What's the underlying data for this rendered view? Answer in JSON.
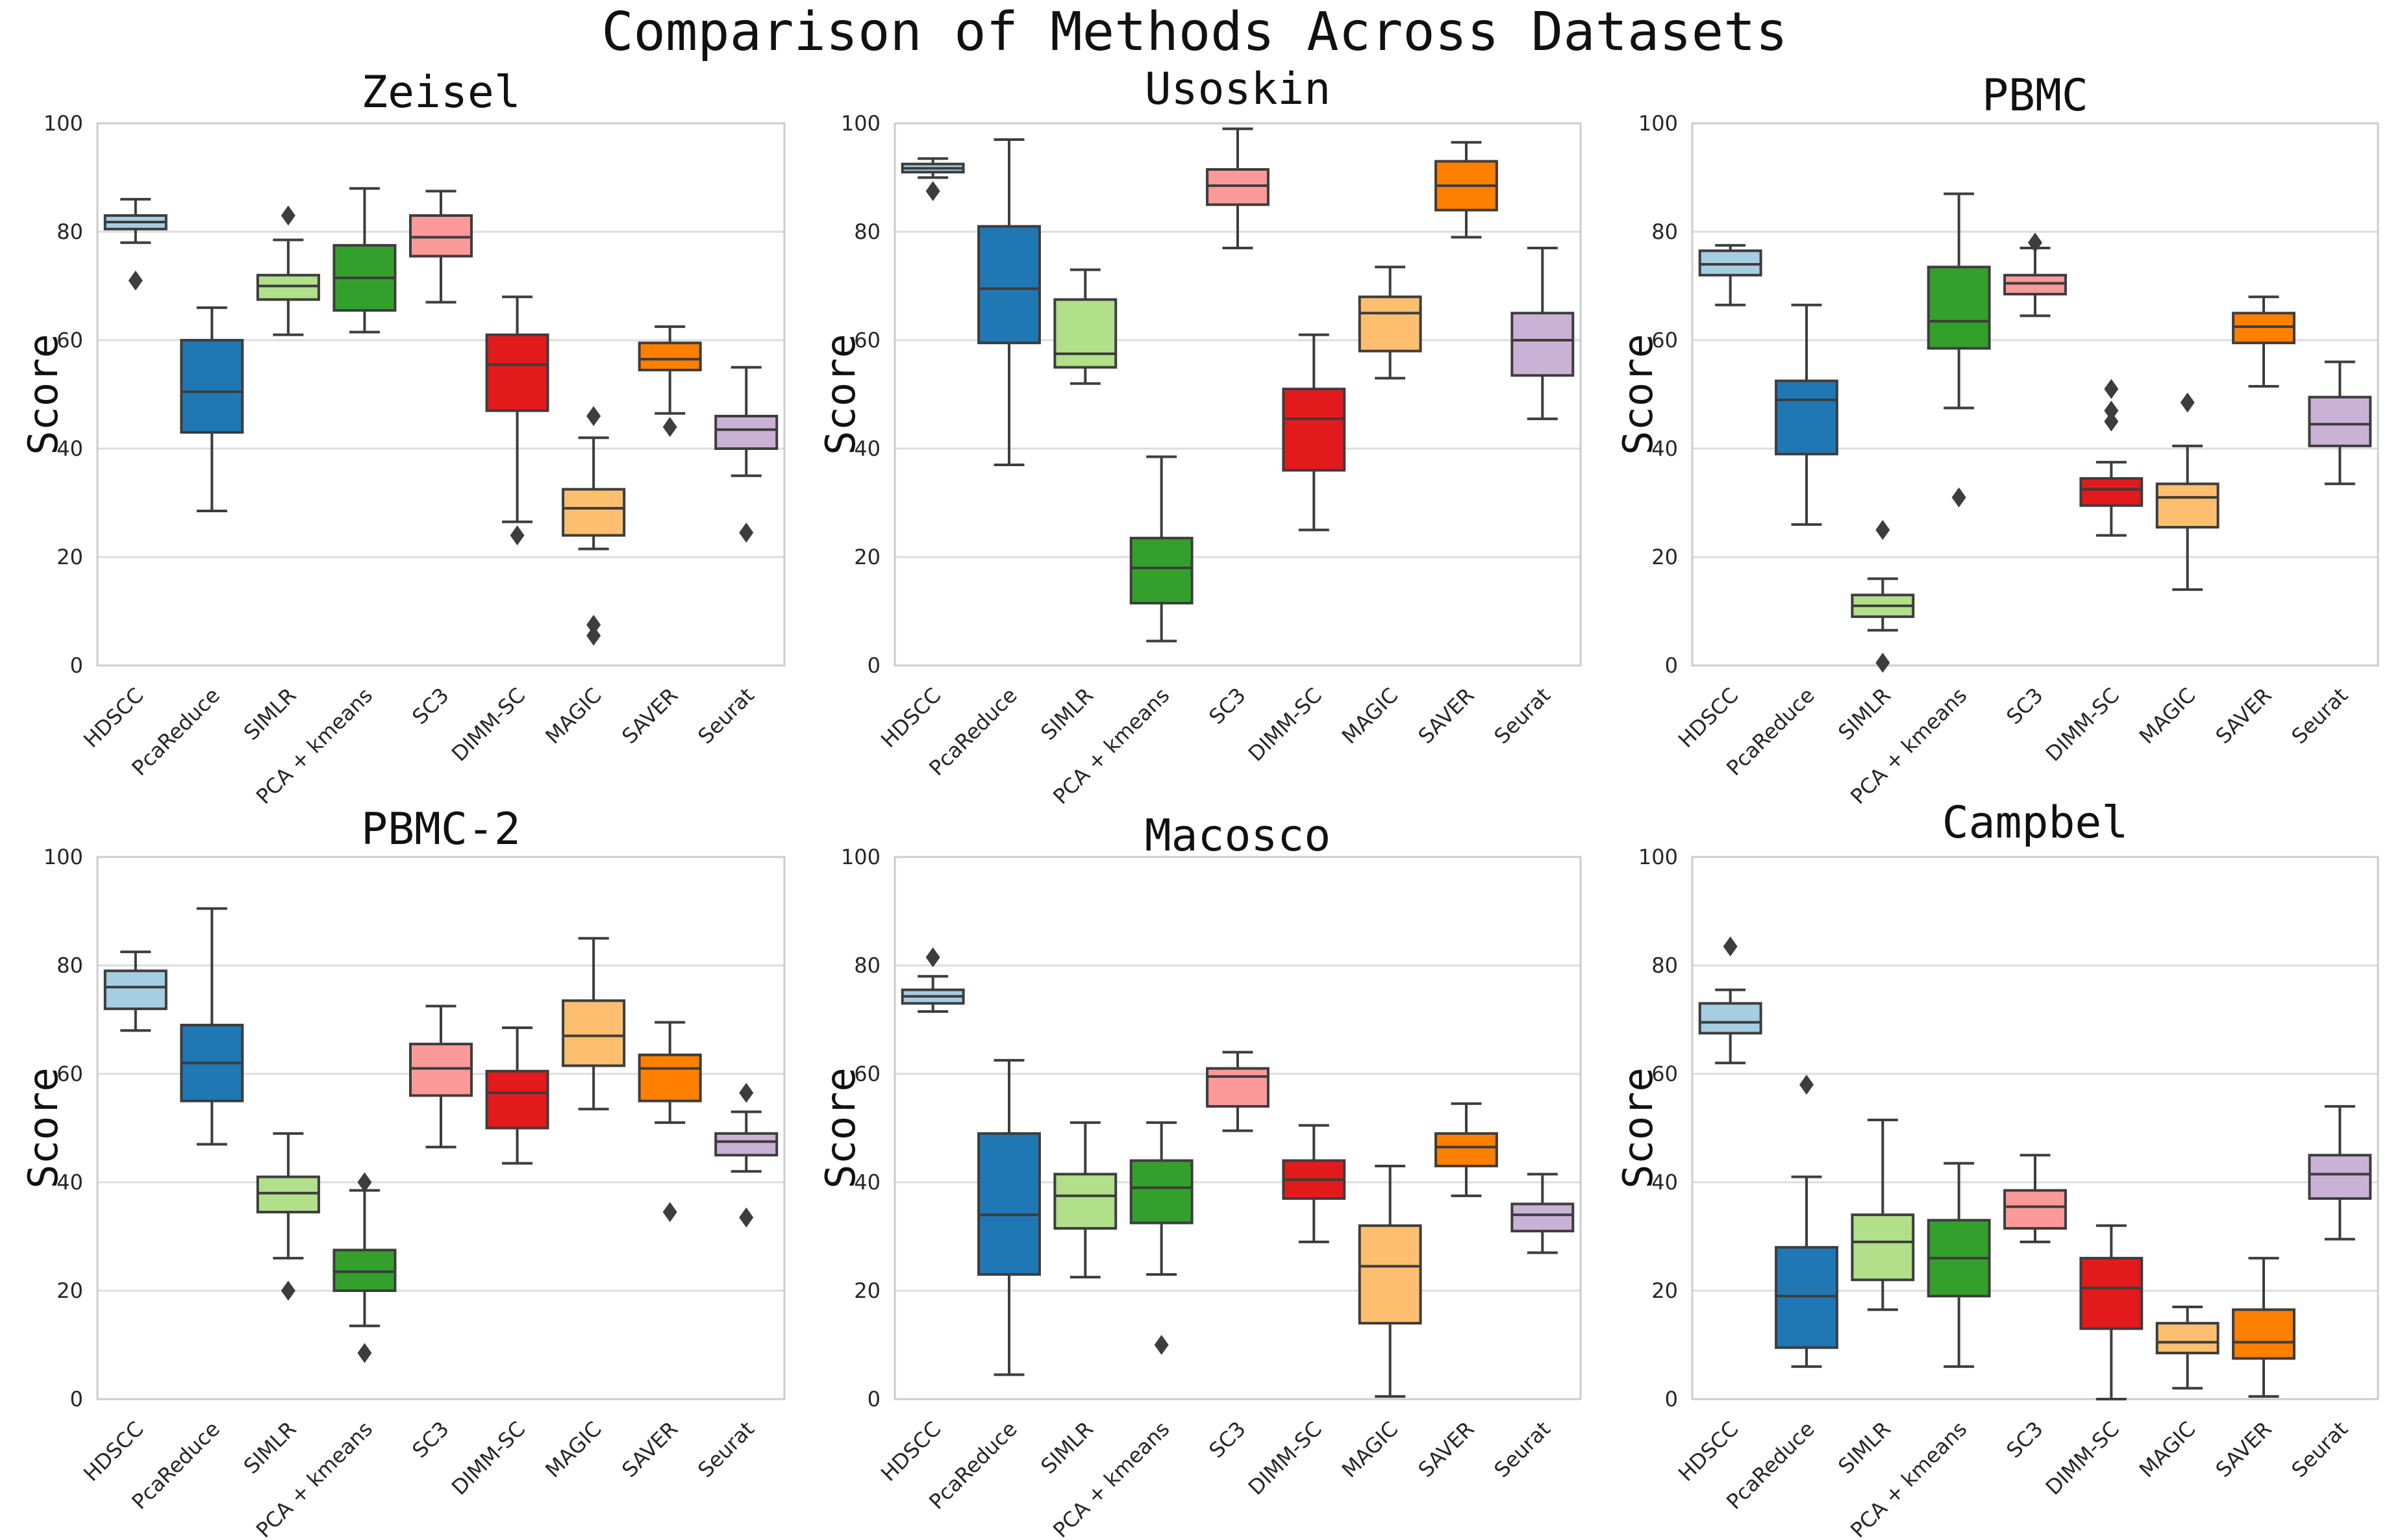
{
  "figure_title": "Comparison of Methods Across Datasets",
  "colors": {
    "HDSCC": "#a6cee3",
    "PcaReduce": "#1f78b4",
    "SIMLR": "#b2df8a",
    "PCA + kmeans": "#33a02c",
    "SC3": "#fb9a99",
    "DIMM-SC": "#e31a1c",
    "MAGIC": "#fdbf6f",
    "SAVER": "#ff7f00",
    "Seurat": "#cab2d6"
  },
  "chart_data": [
    {
      "type": "box",
      "title": "Zeisel",
      "ylabel": "Score",
      "ylim": [
        0,
        100
      ],
      "yticks": [
        "0",
        "20",
        "40",
        "60",
        "80",
        "100"
      ],
      "categories": [
        "HDSCC",
        "PcaReduce",
        "SIMLR",
        "PCA + kmeans",
        "SC3",
        "DIMM-SC",
        "MAGIC",
        "SAVER",
        "Seurat"
      ],
      "boxes": [
        {
          "whislo": 78,
          "q1": 80.5,
          "med": 81.8,
          "q3": 83,
          "whishi": 86,
          "fliers": [
            71
          ]
        },
        {
          "whislo": 28.5,
          "q1": 43,
          "med": 50.5,
          "q3": 60,
          "whishi": 66,
          "fliers": []
        },
        {
          "whislo": 61,
          "q1": 67.5,
          "med": 70,
          "q3": 72,
          "whishi": 78.5,
          "fliers": [
            83
          ]
        },
        {
          "whislo": 61.5,
          "q1": 65.5,
          "med": 71.5,
          "q3": 77.5,
          "whishi": 88,
          "fliers": []
        },
        {
          "whislo": 67,
          "q1": 75.5,
          "med": 79,
          "q3": 83,
          "whishi": 87.5,
          "fliers": []
        },
        {
          "whislo": 26.5,
          "q1": 47,
          "med": 55.5,
          "q3": 61,
          "whishi": 68,
          "fliers": [
            24
          ]
        },
        {
          "whislo": 21.5,
          "q1": 24,
          "med": 29,
          "q3": 32.5,
          "whishi": 42,
          "fliers": [
            46,
            7.5,
            5.5
          ]
        },
        {
          "whislo": 46.5,
          "q1": 54.5,
          "med": 56.5,
          "q3": 59.5,
          "whishi": 62.5,
          "fliers": [
            44
          ]
        },
        {
          "whislo": 35,
          "q1": 40,
          "med": 43.5,
          "q3": 46,
          "whishi": 55,
          "fliers": [
            24.5
          ]
        }
      ]
    },
    {
      "type": "box",
      "title": "Usoskin",
      "ylabel": "Score",
      "ylim": [
        0,
        100
      ],
      "yticks": [
        "0",
        "20",
        "40",
        "60",
        "80",
        "100"
      ],
      "categories": [
        "HDSCC",
        "PcaReduce",
        "SIMLR",
        "PCA + kmeans",
        "SC3",
        "DIMM-SC",
        "MAGIC",
        "SAVER",
        "Seurat"
      ],
      "boxes": [
        {
          "whislo": 90,
          "q1": 91,
          "med": 91.7,
          "q3": 92.5,
          "whishi": 93.5,
          "fliers": [
            87.5
          ]
        },
        {
          "whislo": 37,
          "q1": 59.5,
          "med": 69.5,
          "q3": 81,
          "whishi": 97,
          "fliers": []
        },
        {
          "whislo": 52,
          "q1": 55,
          "med": 57.5,
          "q3": 67.5,
          "whishi": 73,
          "fliers": []
        },
        {
          "whislo": 4.5,
          "q1": 11.5,
          "med": 18,
          "q3": 23.5,
          "whishi": 38.5,
          "fliers": []
        },
        {
          "whislo": 77,
          "q1": 85,
          "med": 88.5,
          "q3": 91.5,
          "whishi": 99,
          "fliers": []
        },
        {
          "whislo": 25,
          "q1": 36,
          "med": 45.5,
          "q3": 51,
          "whishi": 61,
          "fliers": []
        },
        {
          "whislo": 53,
          "q1": 58,
          "med": 65,
          "q3": 68,
          "whishi": 73.5,
          "fliers": []
        },
        {
          "whislo": 79,
          "q1": 84,
          "med": 88.5,
          "q3": 93,
          "whishi": 96.5,
          "fliers": []
        },
        {
          "whislo": 45.5,
          "q1": 53.5,
          "med": 60,
          "q3": 65,
          "whishi": 77,
          "fliers": []
        }
      ]
    },
    {
      "type": "box",
      "title": "PBMC",
      "ylabel": "Score",
      "ylim": [
        0,
        100
      ],
      "yticks": [
        "0",
        "20",
        "40",
        "60",
        "80",
        "100"
      ],
      "categories": [
        "HDSCC",
        "PcaReduce",
        "SIMLR",
        "PCA + kmeans",
        "SC3",
        "DIMM-SC",
        "MAGIC",
        "SAVER",
        "Seurat"
      ],
      "boxes": [
        {
          "whislo": 66.5,
          "q1": 72,
          "med": 74,
          "q3": 76.5,
          "whishi": 77.5,
          "fliers": []
        },
        {
          "whislo": 26,
          "q1": 39,
          "med": 49,
          "q3": 52.5,
          "whishi": 66.5,
          "fliers": []
        },
        {
          "whislo": 6.5,
          "q1": 9,
          "med": 11,
          "q3": 13,
          "whishi": 16,
          "fliers": [
            25,
            0.5
          ]
        },
        {
          "whislo": 47.5,
          "q1": 58.5,
          "med": 63.5,
          "q3": 73.5,
          "whishi": 87,
          "fliers": [
            31
          ]
        },
        {
          "whislo": 64.5,
          "q1": 68.5,
          "med": 70.5,
          "q3": 72,
          "whishi": 77,
          "fliers": [
            78
          ]
        },
        {
          "whislo": 24,
          "q1": 29.5,
          "med": 32.5,
          "q3": 34.5,
          "whishi": 37.5,
          "fliers": [
            51,
            47,
            45
          ]
        },
        {
          "whislo": 14,
          "q1": 25.5,
          "med": 31,
          "q3": 33.5,
          "whishi": 40.5,
          "fliers": [
            48.5
          ]
        },
        {
          "whislo": 51.5,
          "q1": 59.5,
          "med": 62.5,
          "q3": 65,
          "whishi": 68,
          "fliers": []
        },
        {
          "whislo": 33.5,
          "q1": 40.5,
          "med": 44.5,
          "q3": 49.5,
          "whishi": 56,
          "fliers": []
        }
      ]
    },
    {
      "type": "box",
      "title": "PBMC-2",
      "ylabel": "Score",
      "ylim": [
        0,
        100
      ],
      "yticks": [
        "0",
        "20",
        "40",
        "60",
        "80",
        "100"
      ],
      "categories": [
        "HDSCC",
        "PcaReduce",
        "SIMLR",
        "PCA + kmeans",
        "SC3",
        "DIMM-SC",
        "MAGIC",
        "SAVER",
        "Seurat"
      ],
      "boxes": [
        {
          "whislo": 68,
          "q1": 72,
          "med": 76,
          "q3": 79,
          "whishi": 82.5,
          "fliers": []
        },
        {
          "whislo": 47,
          "q1": 55,
          "med": 62,
          "q3": 69,
          "whishi": 90.5,
          "fliers": []
        },
        {
          "whislo": 26,
          "q1": 34.5,
          "med": 38,
          "q3": 41,
          "whishi": 49,
          "fliers": [
            20
          ]
        },
        {
          "whislo": 13.5,
          "q1": 20,
          "med": 23.5,
          "q3": 27.5,
          "whishi": 38.5,
          "fliers": [
            40,
            8.5
          ]
        },
        {
          "whislo": 46.5,
          "q1": 56,
          "med": 61,
          "q3": 65.5,
          "whishi": 72.5,
          "fliers": []
        },
        {
          "whislo": 43.5,
          "q1": 50,
          "med": 56.5,
          "q3": 60.5,
          "whishi": 68.5,
          "fliers": []
        },
        {
          "whislo": 53.5,
          "q1": 61.5,
          "med": 67,
          "q3": 73.5,
          "whishi": 85,
          "fliers": []
        },
        {
          "whislo": 51,
          "q1": 55,
          "med": 61,
          "q3": 63.5,
          "whishi": 69.5,
          "fliers": [
            34.5
          ]
        },
        {
          "whislo": 42,
          "q1": 45,
          "med": 47.5,
          "q3": 49,
          "whishi": 53,
          "fliers": [
            56.5,
            33.5
          ]
        }
      ]
    },
    {
      "type": "box",
      "title": "Macosco",
      "ylabel": "Score",
      "ylim": [
        0,
        100
      ],
      "yticks": [
        "0",
        "20",
        "40",
        "60",
        "80",
        "100"
      ],
      "categories": [
        "HDSCC",
        "PcaReduce",
        "SIMLR",
        "PCA + kmeans",
        "SC3",
        "DIMM-SC",
        "MAGIC",
        "SAVER",
        "Seurat"
      ],
      "boxes": [
        {
          "whislo": 71.5,
          "q1": 73,
          "med": 74.3,
          "q3": 75.5,
          "whishi": 78,
          "fliers": [
            81.5
          ]
        },
        {
          "whislo": 4.5,
          "q1": 23,
          "med": 34,
          "q3": 49,
          "whishi": 62.5,
          "fliers": []
        },
        {
          "whislo": 22.5,
          "q1": 31.5,
          "med": 37.5,
          "q3": 41.5,
          "whishi": 51,
          "fliers": []
        },
        {
          "whislo": 23,
          "q1": 32.5,
          "med": 39,
          "q3": 44,
          "whishi": 51,
          "fliers": [
            10
          ]
        },
        {
          "whislo": 49.5,
          "q1": 54,
          "med": 59.5,
          "q3": 61,
          "whishi": 64,
          "fliers": []
        },
        {
          "whislo": 29,
          "q1": 37,
          "med": 40.5,
          "q3": 44,
          "whishi": 50.5,
          "fliers": []
        },
        {
          "whislo": 0.5,
          "q1": 14,
          "med": 24.5,
          "q3": 32,
          "whishi": 43,
          "fliers": []
        },
        {
          "whislo": 37.5,
          "q1": 43,
          "med": 46.5,
          "q3": 49,
          "whishi": 54.5,
          "fliers": []
        },
        {
          "whislo": 27,
          "q1": 31,
          "med": 34,
          "q3": 36,
          "whishi": 41.5,
          "fliers": []
        }
      ]
    },
    {
      "type": "box",
      "title": "Campbel",
      "ylabel": "Score",
      "ylim": [
        0,
        100
      ],
      "yticks": [
        "0",
        "20",
        "40",
        "60",
        "80",
        "100"
      ],
      "categories": [
        "HDSCC",
        "PcaReduce",
        "SIMLR",
        "PCA + kmeans",
        "SC3",
        "DIMM-SC",
        "MAGIC",
        "SAVER",
        "Seurat"
      ],
      "boxes": [
        {
          "whislo": 62,
          "q1": 67.5,
          "med": 69.5,
          "q3": 73,
          "whishi": 75.5,
          "fliers": [
            83.5
          ]
        },
        {
          "whislo": 6,
          "q1": 9.5,
          "med": 19,
          "q3": 28,
          "whishi": 41,
          "fliers": [
            58
          ]
        },
        {
          "whislo": 16.5,
          "q1": 22,
          "med": 29,
          "q3": 34,
          "whishi": 51.5,
          "fliers": []
        },
        {
          "whislo": 6,
          "q1": 19,
          "med": 26,
          "q3": 33,
          "whishi": 43.5,
          "fliers": []
        },
        {
          "whislo": 29,
          "q1": 31.5,
          "med": 35.5,
          "q3": 38.5,
          "whishi": 45,
          "fliers": []
        },
        {
          "whislo": 0,
          "q1": 13,
          "med": 20.5,
          "q3": 26,
          "whishi": 32,
          "fliers": []
        },
        {
          "whislo": 2,
          "q1": 8.5,
          "med": 10.5,
          "q3": 14,
          "whishi": 17,
          "fliers": []
        },
        {
          "whislo": 0.5,
          "q1": 7.5,
          "med": 10.5,
          "q3": 16.5,
          "whishi": 26,
          "fliers": []
        },
        {
          "whislo": 29.5,
          "q1": 37,
          "med": 41.5,
          "q3": 45,
          "whishi": 54,
          "fliers": []
        }
      ]
    }
  ]
}
